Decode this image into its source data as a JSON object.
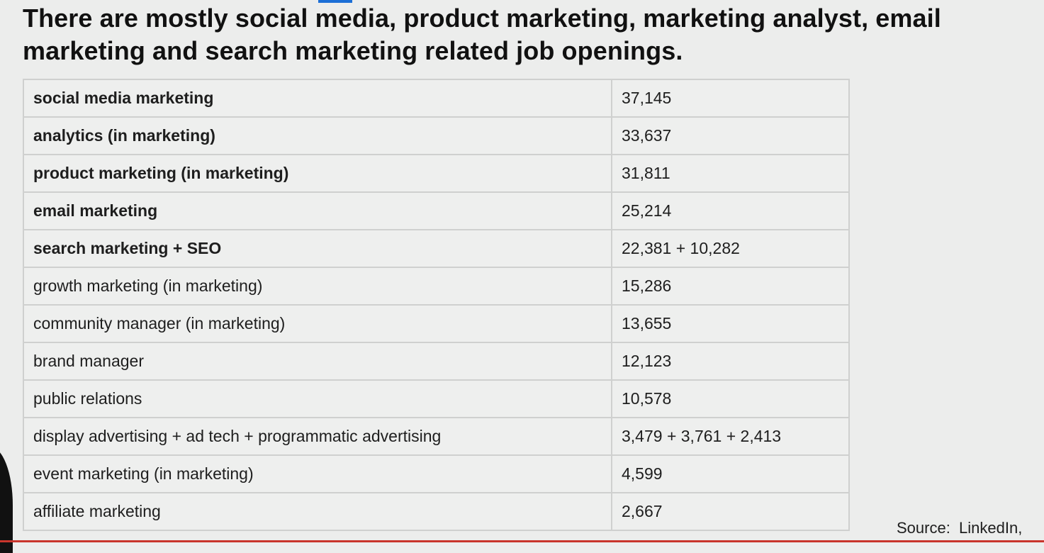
{
  "slide": {
    "title": "There are mostly social media, product marketing, marketing analyst, email marketing and search marketing related job openings."
  },
  "table": {
    "rows": [
      {
        "label": "social media marketing",
        "value": "37,145",
        "bold": true
      },
      {
        "label": "analytics (in marketing)",
        "value": "33,637",
        "bold": true
      },
      {
        "label": "product marketing (in marketing)",
        "value": "31,811",
        "bold": true
      },
      {
        "label": "email marketing",
        "value": "25,214",
        "bold": true
      },
      {
        "label": "search marketing + SEO",
        "value": "22,381 + 10,282",
        "bold": true
      },
      {
        "label": "growth marketing (in marketing)",
        "value": "15,286",
        "bold": false
      },
      {
        "label": "community manager (in marketing)",
        "value": "13,655",
        "bold": false
      },
      {
        "label": "brand manager",
        "value": "12,123",
        "bold": false
      },
      {
        "label": "public relations",
        "value": "10,578",
        "bold": false
      },
      {
        "label": "display advertising + ad tech + programmatic advertising",
        "value": "3,479 + 3,761 + 2,413",
        "bold": false
      },
      {
        "label": "event marketing (in marketing)",
        "value": "4,599",
        "bold": false
      },
      {
        "label": "affiliate marketing",
        "value": "2,667",
        "bold": false
      }
    ]
  },
  "source": {
    "text": "Source:  LinkedIn,"
  },
  "colors": {
    "background": "#ecedec",
    "grid_line": "#cfd0cf",
    "accent": "#1c6fd6"
  }
}
